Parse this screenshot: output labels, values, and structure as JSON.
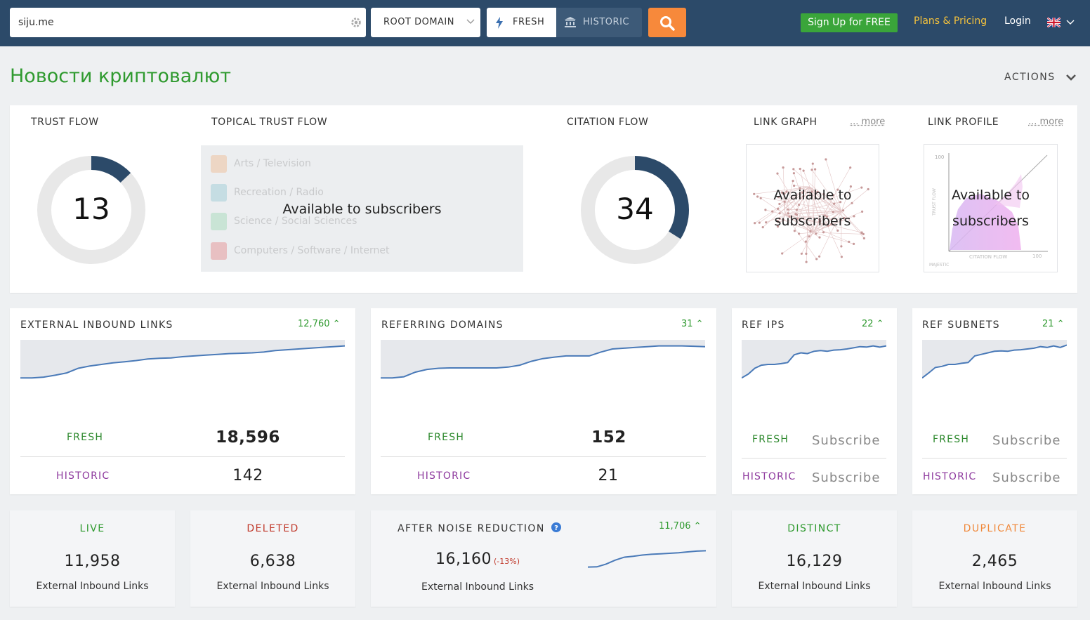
{
  "header": {
    "search_value": "siju.me",
    "scope_select": "ROOT DOMAIN",
    "fresh_label": "FRESH",
    "historic_label": "HISTORIC",
    "signup_label": "Sign Up for FREE",
    "plans_label": "Plans & Pricing",
    "login_label": "Login",
    "colors": {
      "bar": "#2c4a69",
      "search_button": "#f7893b",
      "signup": "#3aa53a",
      "plans": "#f5c23c"
    }
  },
  "page": {
    "title": "Новости криптовалют",
    "actions_label": "ACTIONS"
  },
  "overview": {
    "trust_flow": {
      "label": "TRUST FLOW",
      "value": "13",
      "fraction": 0.13
    },
    "topical_trust_flow": {
      "label": "TOPICAL TRUST FLOW",
      "overlay": "Available to subscribers",
      "items": [
        {
          "label": "Arts / Television",
          "color": "#f0a060"
        },
        {
          "label": "Recreation / Radio",
          "color": "#6fb7c8"
        },
        {
          "label": "Science / Social Sciences",
          "color": "#7ccf9a"
        },
        {
          "label": "Computers / Software / Internet",
          "color": "#e05a5a"
        }
      ]
    },
    "citation_flow": {
      "label": "CITATION FLOW",
      "value": "34",
      "fraction": 0.34
    },
    "link_graph": {
      "label": "LINK GRAPH",
      "more": "... more",
      "overlay_line1": "Available to",
      "overlay_line2": "subscribers"
    },
    "link_profile": {
      "label": "LINK PROFILE",
      "more": "... more",
      "overlay_line1": "Available to",
      "overlay_line2": "subscribers",
      "axis_x": "CITATION FLOW",
      "axis_y": "TRUST FLOW",
      "tick_100": "100",
      "brand": "MAJESTIC"
    }
  },
  "metrics": {
    "external_inbound_links": {
      "title": "EXTERNAL INBOUND LINKS",
      "delta": "12,760",
      "fresh_label": "FRESH",
      "fresh_value": "18,596",
      "historic_label": "HISTORIC",
      "historic_value": "142",
      "trend": [
        0.05,
        0.05,
        0.07,
        0.12,
        0.18,
        0.3,
        0.36,
        0.4,
        0.44,
        0.47,
        0.5,
        0.54,
        0.56,
        0.57,
        0.6,
        0.62,
        0.64,
        0.66,
        0.68,
        0.69,
        0.7,
        0.72,
        0.76,
        0.78,
        0.8,
        0.82,
        0.84,
        0.86,
        0.88
      ]
    },
    "referring_domains": {
      "title": "REFERRING DOMAINS",
      "delta": "31",
      "fresh_label": "FRESH",
      "fresh_value": "152",
      "historic_label": "HISTORIC",
      "historic_value": "21",
      "trend": [
        0.05,
        0.05,
        0.08,
        0.2,
        0.27,
        0.3,
        0.31,
        0.31,
        0.31,
        0.31,
        0.31,
        0.33,
        0.38,
        0.48,
        0.55,
        0.59,
        0.62,
        0.62,
        0.62,
        0.72,
        0.8,
        0.82,
        0.84,
        0.86,
        0.88,
        0.88,
        0.88,
        0.87,
        0.86
      ]
    },
    "ref_ips": {
      "title": "REF IPS",
      "delta": "22",
      "fresh_label": "FRESH",
      "fresh_value": "Subscribe",
      "historic_label": "HISTORIC",
      "historic_value": "Subscribe",
      "trend": [
        0.05,
        0.15,
        0.3,
        0.38,
        0.4,
        0.4,
        0.42,
        0.45,
        0.65,
        0.7,
        0.68,
        0.74,
        0.76,
        0.74,
        0.77,
        0.78,
        0.8,
        0.83,
        0.86,
        0.85,
        0.88,
        0.85,
        0.88
      ]
    },
    "ref_subnets": {
      "title": "REF SUBNETS",
      "delta": "21",
      "fresh_label": "FRESH",
      "fresh_value": "Subscribe",
      "historic_label": "HISTORIC",
      "historic_value": "Subscribe",
      "trend": [
        0.05,
        0.18,
        0.32,
        0.35,
        0.4,
        0.4,
        0.43,
        0.45,
        0.62,
        0.66,
        0.7,
        0.74,
        0.75,
        0.74,
        0.77,
        0.78,
        0.8,
        0.82,
        0.86,
        0.84,
        0.88,
        0.84,
        0.9
      ]
    }
  },
  "breakdown": {
    "live": {
      "title": "LIVE",
      "value": "11,958",
      "sub": "External Inbound Links",
      "color": "#2f9a2f"
    },
    "deleted": {
      "title": "DELETED",
      "value": "6,638",
      "sub": "External Inbound Links",
      "color": "#c0392b"
    },
    "noise": {
      "title": "AFTER NOISE REDUCTION",
      "value": "16,160",
      "pct": "(-13%)",
      "sub": "External Inbound Links",
      "delta": "11,706",
      "trend": [
        0.05,
        0.06,
        0.2,
        0.4,
        0.55,
        0.6,
        0.66,
        0.7,
        0.72,
        0.75,
        0.78,
        0.82,
        0.86,
        0.88
      ]
    },
    "distinct": {
      "title": "DISTINCT",
      "value": "16,129",
      "sub": "External Inbound Links",
      "color": "#2f9a2f"
    },
    "duplicate": {
      "title": "DUPLICATE",
      "value": "2,465",
      "sub": "External Inbound Links",
      "color": "#f0883a"
    }
  }
}
